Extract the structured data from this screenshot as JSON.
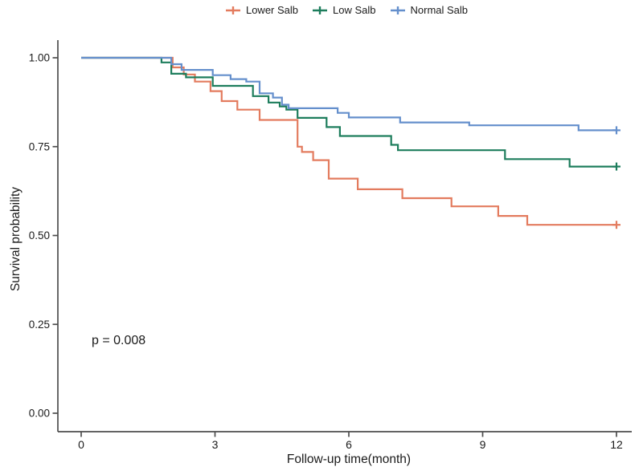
{
  "annotation": {
    "p_value": "p = 0.008"
  },
  "chart_data": {
    "type": "line",
    "subtype": "kaplan-meier-step",
    "title": "",
    "xlabel": "Follow-up time(month)",
    "ylabel": "Survival probability",
    "xlim": [
      0,
      12
    ],
    "ylim": [
      0.0,
      1.0
    ],
    "xticks": [
      0,
      3,
      6,
      9,
      12
    ],
    "yticks": [
      "0.00",
      "0.25",
      "0.50",
      "0.75",
      "1.00"
    ],
    "ytick_values": [
      0.0,
      0.25,
      0.5,
      0.75,
      1.0
    ],
    "grid": false,
    "legend_position": "top",
    "axis_color": "#4d4d4d",
    "series": [
      {
        "name": "Lower Salb",
        "color": "#E37B5E",
        "x": [
          0,
          2.05,
          2.3,
          2.55,
          2.9,
          3.15,
          3.5,
          4.0,
          4.85,
          4.95,
          5.2,
          5.55,
          6.2,
          7.2,
          8.3,
          9.35,
          10.0,
          12
        ],
        "y": [
          1.0,
          0.973,
          0.953,
          0.933,
          0.906,
          0.878,
          0.854,
          0.825,
          0.75,
          0.735,
          0.712,
          0.66,
          0.63,
          0.605,
          0.582,
          0.555,
          0.53,
          0.53
        ],
        "censor_marks": [
          [
            12,
            0.53
          ]
        ]
      },
      {
        "name": "Low Salb",
        "color": "#1D7D5C",
        "x": [
          0,
          1.8,
          2.02,
          2.35,
          2.95,
          3.85,
          4.2,
          4.45,
          4.6,
          4.85,
          5.5,
          5.8,
          6.95,
          7.1,
          9.5,
          10.95,
          12
        ],
        "y": [
          1.0,
          0.987,
          0.955,
          0.945,
          0.921,
          0.892,
          0.874,
          0.863,
          0.854,
          0.831,
          0.805,
          0.78,
          0.755,
          0.74,
          0.715,
          0.694,
          0.694
        ],
        "censor_marks": [
          [
            12,
            0.694
          ]
        ]
      },
      {
        "name": "Normal Salb",
        "color": "#648FCC",
        "x": [
          0,
          2.02,
          2.25,
          2.95,
          3.35,
          3.7,
          4.0,
          4.3,
          4.5,
          4.65,
          5.75,
          6.0,
          7.15,
          8.7,
          11.15,
          12
        ],
        "y": [
          1.0,
          0.982,
          0.966,
          0.951,
          0.94,
          0.933,
          0.9,
          0.888,
          0.868,
          0.858,
          0.845,
          0.832,
          0.818,
          0.81,
          0.796,
          0.796
        ],
        "censor_marks": [
          [
            12,
            0.796
          ]
        ]
      }
    ],
    "annotations": [
      {
        "text": "p = 0.008",
        "x": 0.2,
        "y": 0.22
      }
    ]
  }
}
